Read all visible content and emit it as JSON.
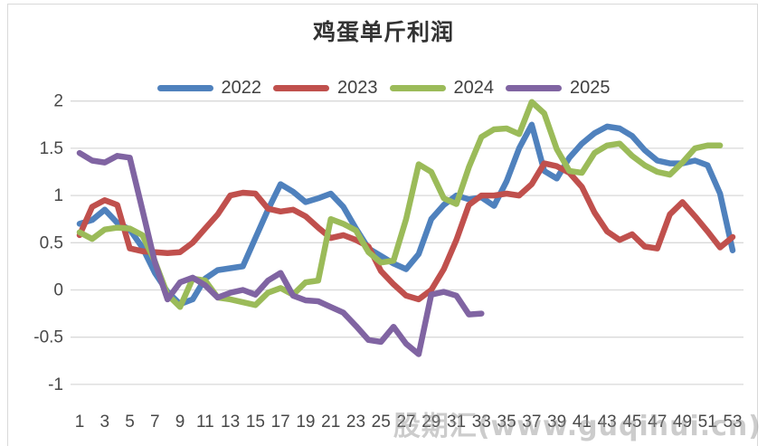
{
  "title": "鸡蛋单斤利润",
  "watermark": "股期汇(www.guqihui.cn)",
  "colors": {
    "grid": "#d9d9d9",
    "axis_text": "#484848",
    "title_text": "#333333",
    "series_2022": "#4F81BD",
    "series_2023": "#C0504D",
    "series_2024": "#9BBB59",
    "series_2025": "#8064A2"
  },
  "chart_data": {
    "type": "line",
    "title": "鸡蛋单斤利润",
    "xlabel": "",
    "ylabel": "",
    "x_unit": "week",
    "x_range": [
      1,
      53
    ],
    "x_tick_labels": [
      "1",
      "3",
      "5",
      "7",
      "9",
      "11",
      "13",
      "15",
      "17",
      "19",
      "21",
      "23",
      "25",
      "27",
      "29",
      "31",
      "33",
      "35",
      "37",
      "39",
      "41",
      "43",
      "45",
      "47",
      "49",
      "51",
      "53"
    ],
    "ylim": [
      -1,
      2
    ],
    "y_tick_labels": [
      "2",
      "1.5",
      "1",
      "0.5",
      "0",
      "-0.5",
      "-1"
    ],
    "y_tick_values": [
      2,
      1.5,
      1,
      0.5,
      0,
      -0.5,
      -1
    ],
    "grid": "horizontal",
    "legend_position": "top",
    "series": [
      {
        "name": "2022",
        "color": "#4F81BD",
        "start_week": 1,
        "values": [
          0.7,
          0.74,
          0.85,
          0.71,
          0.64,
          0.45,
          0.18,
          -0.02,
          -0.15,
          -0.1,
          0.12,
          0.21,
          0.23,
          0.25,
          0.55,
          0.85,
          1.12,
          1.04,
          0.93,
          0.97,
          1.02,
          0.88,
          0.65,
          0.44,
          0.36,
          0.28,
          0.22,
          0.38,
          0.75,
          0.9,
          1.0,
          0.96,
          0.98,
          0.89,
          1.15,
          1.5,
          1.75,
          1.26,
          1.18,
          1.4,
          1.55,
          1.66,
          1.73,
          1.71,
          1.63,
          1.48,
          1.37,
          1.34,
          1.34,
          1.37,
          1.32,
          1.02,
          0.42
        ]
      },
      {
        "name": "2023",
        "color": "#C0504D",
        "start_week": 1,
        "values": [
          0.58,
          0.88,
          0.95,
          0.9,
          0.44,
          0.41,
          0.4,
          0.39,
          0.4,
          0.5,
          0.65,
          0.8,
          1.0,
          1.03,
          1.02,
          0.86,
          0.83,
          0.85,
          0.78,
          0.66,
          0.55,
          0.58,
          0.53,
          0.46,
          0.2,
          0.06,
          -0.06,
          -0.1,
          0.0,
          0.22,
          0.53,
          0.9,
          1.0,
          1.0,
          1.02,
          1.0,
          1.12,
          1.34,
          1.31,
          1.24,
          1.09,
          0.82,
          0.62,
          0.53,
          0.59,
          0.46,
          0.44,
          0.8,
          0.93,
          0.78,
          0.62,
          0.45,
          0.56
        ]
      },
      {
        "name": "2024",
        "color": "#9BBB59",
        "start_week": 1,
        "values": [
          0.61,
          0.54,
          0.64,
          0.66,
          0.65,
          0.58,
          0.3,
          -0.05,
          -0.18,
          0.12,
          0.1,
          -0.08,
          -0.1,
          -0.13,
          -0.16,
          -0.03,
          0.02,
          -0.05,
          0.08,
          0.1,
          0.75,
          0.7,
          0.63,
          0.4,
          0.29,
          0.31,
          0.75,
          1.33,
          1.25,
          0.97,
          0.91,
          1.3,
          1.62,
          1.7,
          1.71,
          1.65,
          1.99,
          1.87,
          1.49,
          1.26,
          1.24,
          1.45,
          1.53,
          1.55,
          1.42,
          1.32,
          1.25,
          1.22,
          1.35,
          1.5,
          1.53,
          1.53
        ]
      },
      {
        "name": "2025",
        "color": "#8064A2",
        "start_week": 1,
        "values": [
          1.45,
          1.37,
          1.35,
          1.42,
          1.4,
          0.85,
          0.29,
          -0.1,
          0.08,
          0.13,
          0.05,
          -0.08,
          -0.03,
          0.0,
          -0.05,
          0.1,
          0.18,
          -0.06,
          -0.11,
          -0.12,
          -0.18,
          -0.24,
          -0.38,
          -0.53,
          -0.55,
          -0.39,
          -0.57,
          -0.68,
          -0.05,
          -0.02,
          -0.06,
          -0.26,
          -0.25
        ]
      }
    ]
  }
}
